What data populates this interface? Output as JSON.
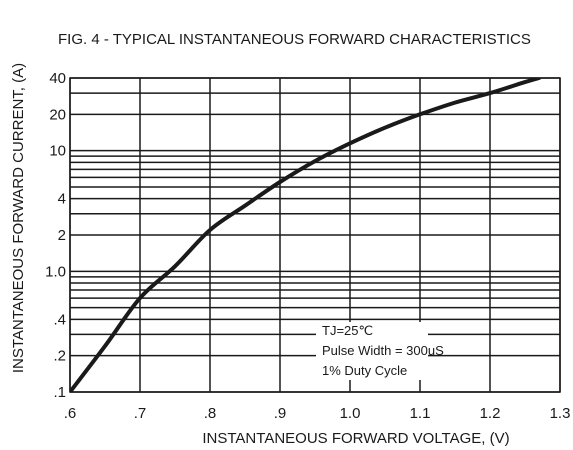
{
  "chart_data": {
    "type": "line",
    "title": "FIG. 4 - TYPICAL INSTANTANEOUS FORWARD CHARACTERISTICS",
    "xlabel": "INSTANTANEOUS FORWARD VOLTAGE, (V)",
    "ylabel": "INSTANTANEOUS FORWARD CURRENT, (A)",
    "xlim": [
      0.6,
      1.3
    ],
    "ylim": [
      0.1,
      40
    ],
    "y_scale": "log",
    "grid": true,
    "x_ticks": [
      0.6,
      0.7,
      0.8,
      0.9,
      1.0,
      1.1,
      1.2,
      1.3
    ],
    "x_tick_labels": [
      ".6",
      ".7",
      ".8",
      ".9",
      "1.0",
      "1.1",
      "1.2",
      "1.3"
    ],
    "y_ticks": [
      0.1,
      0.2,
      0.4,
      1,
      2,
      4,
      10,
      20,
      40
    ],
    "y_tick_labels": [
      ".1",
      ".2",
      ".4",
      "1.0",
      "2",
      "4",
      "10",
      "20",
      "40"
    ],
    "annotations": [
      "TJ=25℃",
      "Pulse Width = 300uS",
      "1% Duty Cycle"
    ],
    "series": [
      {
        "x": [
          0.6,
          0.65,
          0.7,
          0.75,
          0.8,
          0.85,
          0.9,
          0.95,
          1.0,
          1.05,
          1.1,
          1.15,
          1.2,
          1.25,
          1.27
        ],
        "y": [
          0.1,
          0.24,
          0.6,
          1.1,
          2.2,
          3.5,
          5.5,
          8.2,
          11.5,
          15.5,
          20,
          25,
          30,
          37,
          40
        ]
      }
    ]
  },
  "colors": {
    "ink": "#1a1a1a",
    "background": "#ffffff"
  }
}
